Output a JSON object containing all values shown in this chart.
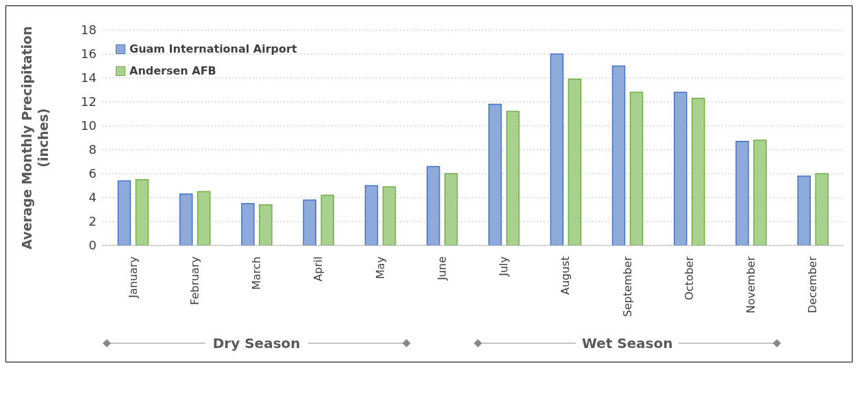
{
  "chart_data": {
    "type": "bar",
    "ylabel": "Average Monthly Precipitation (inches)",
    "categories": [
      "January",
      "February",
      "March",
      "April",
      "May",
      "June",
      "July",
      "August",
      "September",
      "October",
      "November",
      "December"
    ],
    "series": [
      {
        "name": "Guam International Airport",
        "color": "#8eaadb",
        "values": [
          5.4,
          4.3,
          3.5,
          3.8,
          5.0,
          6.6,
          11.8,
          16.0,
          15.0,
          12.8,
          8.7,
          5.8
        ]
      },
      {
        "name": "Andersen AFB",
        "color": "#a9d18e",
        "values": [
          5.5,
          4.5,
          3.4,
          4.2,
          4.9,
          6.0,
          11.2,
          13.9,
          12.8,
          12.3,
          8.8,
          6.0
        ]
      }
    ],
    "ylim": [
      0,
      18
    ],
    "yticks": [
      0,
      2,
      4,
      6,
      8,
      10,
      12,
      14,
      16,
      18
    ],
    "grid": "y",
    "legend": "top left",
    "annotations": [
      "Dry Season",
      "Wet Season"
    ]
  }
}
